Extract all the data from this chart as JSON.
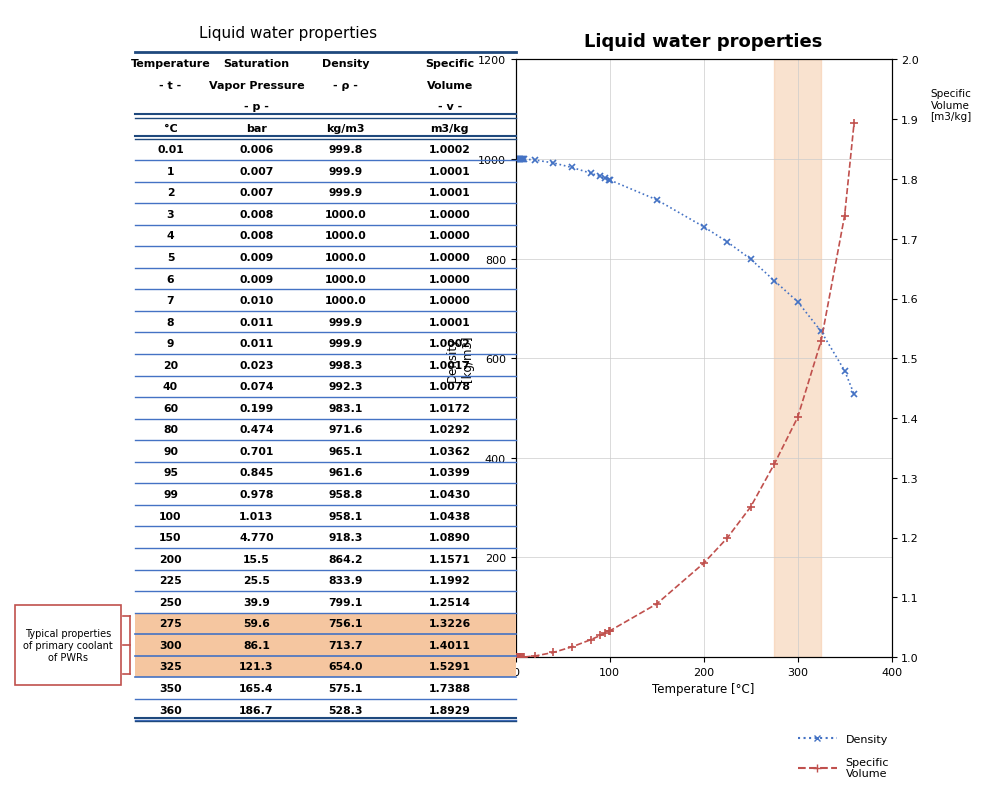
{
  "title": "Liquid water properties",
  "chart_title": "Liquid water properties",
  "temperatures": [
    0.01,
    1,
    2,
    3,
    4,
    5,
    6,
    7,
    8,
    9,
    20,
    40,
    60,
    80,
    90,
    95,
    99,
    100,
    150,
    200,
    225,
    250,
    275,
    300,
    325,
    350,
    360
  ],
  "sat_vapor_pressure": [
    "0.006",
    "0.007",
    "0.007",
    "0.008",
    "0.008",
    "0.009",
    "0.009",
    "0.010",
    "0.011",
    "0.011",
    "0.023",
    "0.074",
    "0.199",
    "0.474",
    "0.701",
    "0.845",
    "0.978",
    "1.013",
    "4.770",
    "15.5",
    "25.5",
    "39.9",
    "59.6",
    "86.1",
    "121.3",
    "165.4",
    "186.7"
  ],
  "density_vals": [
    "999.8",
    "999.9",
    "999.9",
    "1000.0",
    "1000.0",
    "1000.0",
    "1000.0",
    "1000.0",
    "999.9",
    "999.9",
    "998.3",
    "992.3",
    "983.1",
    "971.6",
    "965.1",
    "961.6",
    "958.8",
    "958.1",
    "918.3",
    "864.2",
    "833.9",
    "799.1",
    "756.1",
    "713.7",
    "654.0",
    "575.1",
    "528.3"
  ],
  "specific_volume_vals": [
    "1.0002",
    "1.0001",
    "1.0001",
    "1.0000",
    "1.0000",
    "1.0000",
    "1.0000",
    "1.0000",
    "1.0001",
    "1.0002",
    "1.0017",
    "1.0078",
    "1.0172",
    "1.0292",
    "1.0362",
    "1.0399",
    "1.0430",
    "1.0438",
    "1.0890",
    "1.1571",
    "1.1992",
    "1.2514",
    "1.3226",
    "1.4011",
    "1.5291",
    "1.7388",
    "1.8929"
  ],
  "density_num": [
    999.8,
    999.9,
    999.9,
    1000.0,
    1000.0,
    1000.0,
    1000.0,
    1000.0,
    999.9,
    999.9,
    998.3,
    992.3,
    983.1,
    971.6,
    965.1,
    961.6,
    958.8,
    958.1,
    918.3,
    864.2,
    833.9,
    799.1,
    756.1,
    713.7,
    654.0,
    575.1,
    528.3
  ],
  "spec_vol_num": [
    1.0002,
    1.0001,
    1.0001,
    1.0,
    1.0,
    1.0,
    1.0,
    1.0,
    1.0001,
    1.0002,
    1.0017,
    1.0078,
    1.0172,
    1.0292,
    1.0362,
    1.0399,
    1.043,
    1.0438,
    1.089,
    1.1571,
    1.1992,
    1.2514,
    1.3226,
    1.4011,
    1.5291,
    1.7388,
    1.8929
  ],
  "temp_str": [
    "0.01",
    "1",
    "2",
    "3",
    "4",
    "5",
    "6",
    "7",
    "8",
    "9",
    "20",
    "40",
    "60",
    "80",
    "90",
    "95",
    "99",
    "100",
    "150",
    "200",
    "225",
    "250",
    "275",
    "300",
    "325",
    "350",
    "360"
  ],
  "highlighted_rows": [
    22,
    23,
    24
  ],
  "highlight_row_color": "#F5C6A0",
  "highlight_span_color": "#F5C6A0",
  "density_color": "#4472C4",
  "spec_vol_color": "#C0504D",
  "header_line_color": "#1F497D",
  "row_line_color": "#4472C4",
  "double_line_color": "#1F497D",
  "annotation_text": "Typical properties\nof primary coolant\nof PWRs",
  "annotation_border_color": "#C0504D",
  "col_headers_row1": [
    "Temperature",
    "Saturation",
    "Density",
    "Specific"
  ],
  "col_headers_row2": [
    "- t -",
    "Vapor Pressure",
    "- ρ -",
    "Volume"
  ],
  "col_headers_row3": [
    "",
    "- p -",
    "",
    "- v -"
  ],
  "col_units": [
    "°C",
    "bar",
    "kg/m3",
    "m3/kg"
  ],
  "xlim": [
    0,
    400
  ],
  "ylim_left": [
    0,
    1200
  ],
  "ylim_right": [
    1.0,
    2.0
  ],
  "xlabel": "Temperature [°C]",
  "ylabel_left": "Density\n[kg/m3]",
  "ylabel_right": "Specific\nVolume\n[m3/kg]",
  "highlight_x_start": 275,
  "highlight_x_end": 325,
  "pwr_highlight_alpha": 0.5
}
